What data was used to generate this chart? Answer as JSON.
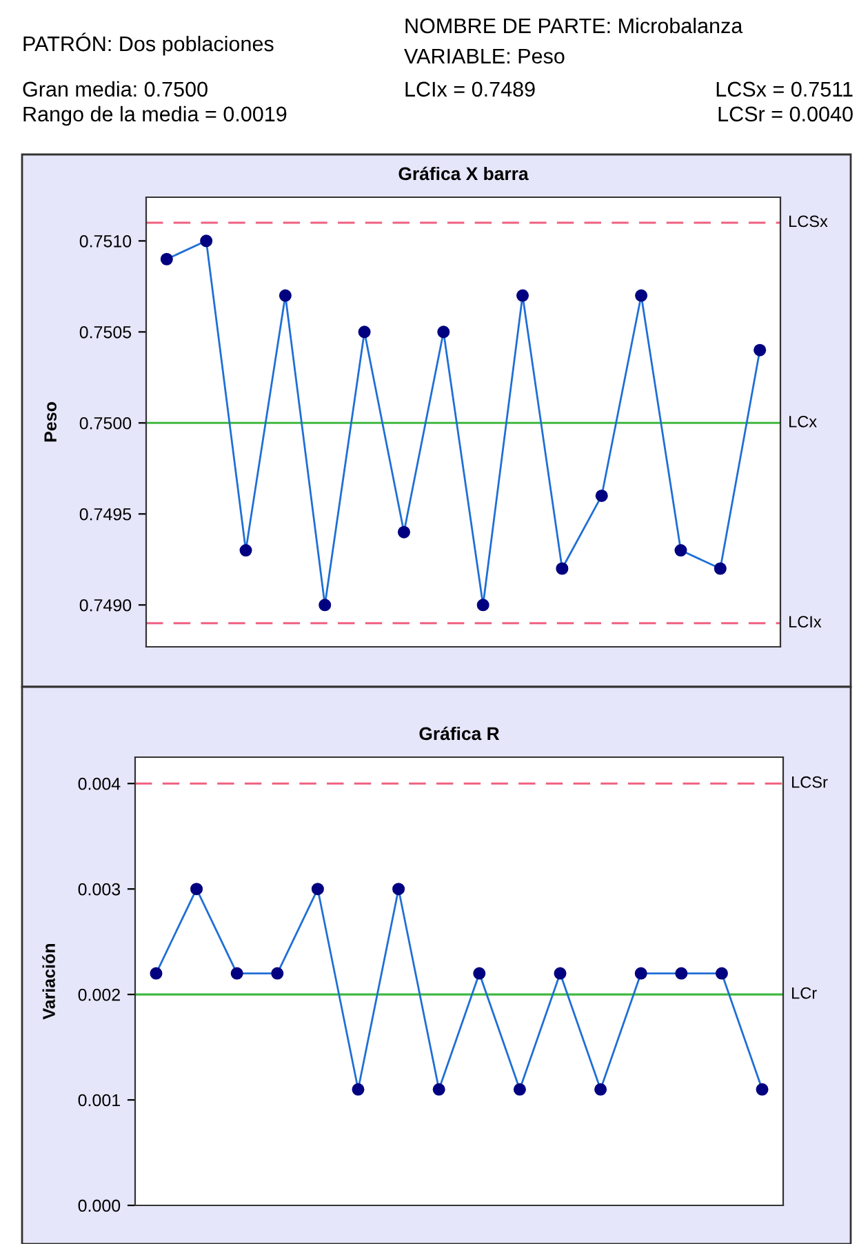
{
  "chart_data": [
    {
      "type": "line",
      "title": "Gráfica X barra",
      "ylabel": "Peso",
      "annotations": [
        "PATRÓN: Dos poblaciones",
        "NOMBRE DE PARTE: Microbalanza",
        "VARIABLE: Peso",
        "Gran media: 0.7500",
        "LCIx = 0.7489",
        "LCSx = 0.7511",
        "Rango de la media = 0.0019",
        "LCSr = 0.0040"
      ],
      "categories": [
        null,
        null,
        null,
        null,
        null,
        null,
        null,
        null,
        null,
        null,
        null,
        null,
        null,
        null,
        null,
        null
      ],
      "series": [
        {
          "color": "#1f6fd6",
          "values": [
            0.7509,
            0.751,
            0.7493,
            0.7507,
            0.749,
            0.7505,
            0.7494,
            0.7505,
            0.749,
            0.7507,
            0.7492,
            0.7496,
            0.7507,
            0.7493,
            0.7492,
            0.7504
          ]
        }
      ],
      "ylim": [
        0.74877,
        0.75124
      ],
      "yticks": [
        {
          "value": 0.749,
          "label": "0.7490"
        },
        {
          "value": 0.7495,
          "label": "0.7495"
        },
        {
          "value": 0.75,
          "label": "0.7500"
        },
        {
          "value": 0.7505,
          "label": "0.7505"
        },
        {
          "value": 0.751,
          "label": "0.7510"
        }
      ],
      "ref_lines": [
        {
          "axis": "y",
          "value": 0.7511,
          "label": "LCSx",
          "color": "#f06080",
          "line_style": "dashed"
        },
        {
          "axis": "y",
          "value": 0.75,
          "label": "LCx",
          "color": "#40b840",
          "line_style": "solid"
        },
        {
          "axis": "y",
          "value": 0.7489,
          "label": "LCIx",
          "color": "#f06080",
          "line_style": "dashed"
        }
      ],
      "marker": "circle",
      "grid": false,
      "tick_labels": "y"
    },
    {
      "type": "line",
      "title": "Gráfica R",
      "ylabel": "Variación",
      "categories": [
        null,
        null,
        null,
        null,
        null,
        null,
        null,
        null,
        null,
        null,
        null,
        null,
        null,
        null,
        null,
        null
      ],
      "series": [
        {
          "color": "#1f6fd6",
          "values": [
            0.0022,
            0.003,
            0.0022,
            0.0022,
            0.003,
            0.0011,
            0.003,
            0.0011,
            0.0022,
            0.0011,
            0.0022,
            0.0011,
            0.0022,
            0.0022,
            0.0022,
            0.0011
          ]
        }
      ],
      "ylim": [
        0,
        0.00425
      ],
      "yticks": [
        {
          "value": 0,
          "label": "0.000"
        },
        {
          "value": 0.001,
          "label": "0.001"
        },
        {
          "value": 0.002,
          "label": "0.002"
        },
        {
          "value": 0.003,
          "label": "0.003"
        },
        {
          "value": 0.004,
          "label": "0.004"
        }
      ],
      "ref_lines": [
        {
          "axis": "y",
          "value": 0.004,
          "label": "LCSr",
          "color": "#f06080",
          "line_style": "dashed"
        },
        {
          "axis": "y",
          "value": 0.002,
          "label": "LCr",
          "color": "#40b840",
          "line_style": "solid"
        }
      ],
      "marker": "circle",
      "grid": false,
      "tick_labels": "y"
    }
  ]
}
